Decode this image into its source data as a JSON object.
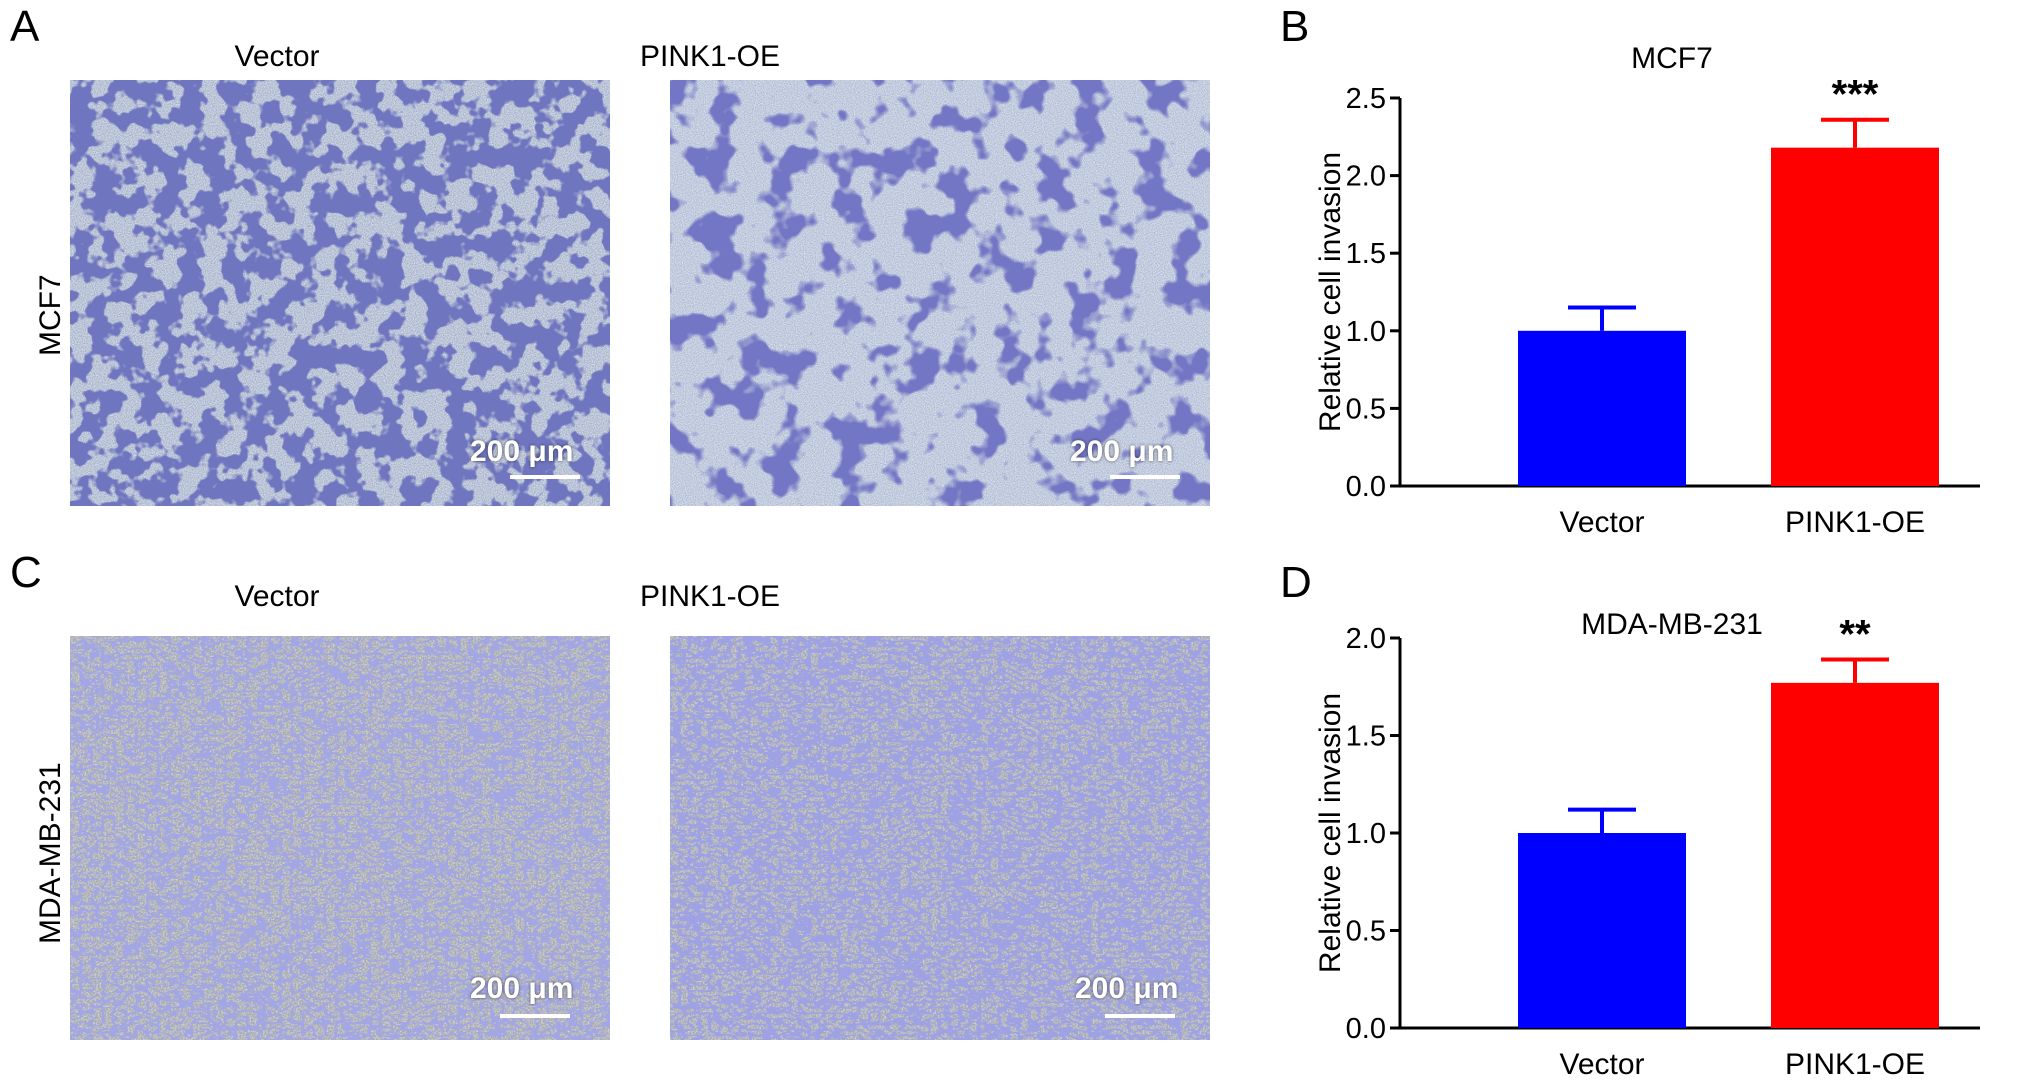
{
  "panels": {
    "A": {
      "letter": "A",
      "row_label": "MCF7",
      "col_titles": [
        "Vector",
        "PINK1-OE"
      ],
      "scale_bar": "200 μm"
    },
    "B": {
      "letter": "B"
    },
    "C": {
      "letter": "C",
      "row_label": "MDA-MB-231",
      "col_titles": [
        "Vector",
        "PINK1-OE"
      ],
      "scale_bar": "200 μm"
    },
    "D": {
      "letter": "D"
    }
  },
  "colors": {
    "vector": "#0000ff",
    "pink1": "#ff0000",
    "stain": "#2a2e86"
  },
  "chart_data": [
    {
      "type": "bar",
      "title": "MCF7",
      "categories": [
        "Vector",
        "PINK1-OE"
      ],
      "values": [
        1.0,
        2.18
      ],
      "errors": [
        0.15,
        0.18
      ],
      "significance": [
        "",
        "***"
      ],
      "ylabel": "Relative cell invasion",
      "ylim": [
        0,
        2.5
      ],
      "yticks": [
        "0.0",
        "0.5",
        "1.0",
        "1.5",
        "2.0",
        "2.5"
      ],
      "colors": [
        "#0000ff",
        "#ff0000"
      ]
    },
    {
      "type": "bar",
      "title": "MDA-MB-231",
      "categories": [
        "Vector",
        "PINK1-OE"
      ],
      "values": [
        1.0,
        1.77
      ],
      "errors": [
        0.12,
        0.12
      ],
      "significance": [
        "",
        "**"
      ],
      "ylabel": "Relative cell invasion",
      "ylim": [
        0,
        2.0
      ],
      "yticks": [
        "0.0",
        "0.5",
        "1.0",
        "1.5",
        "2.0"
      ],
      "colors": [
        "#0000ff",
        "#ff0000"
      ]
    }
  ]
}
